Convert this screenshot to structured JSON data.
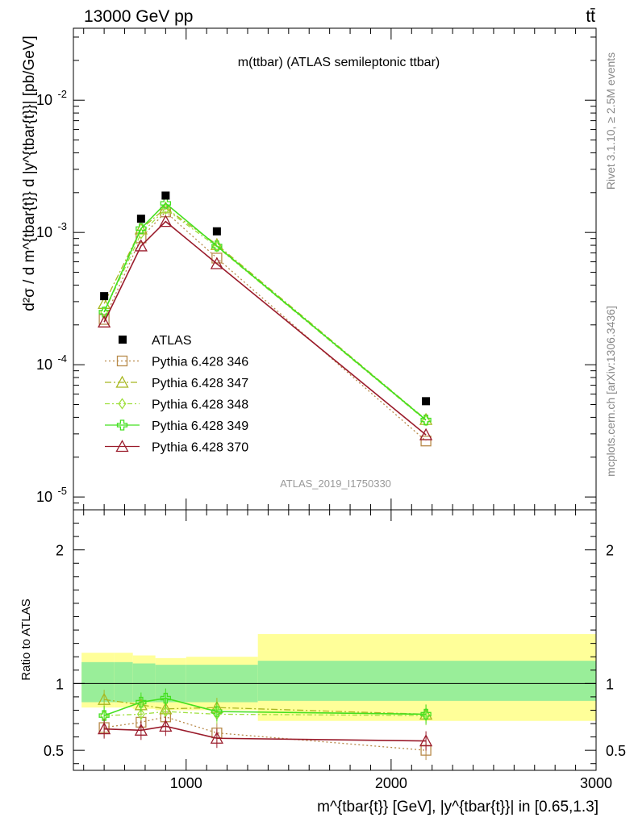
{
  "header": {
    "left": "13000 GeV pp",
    "right": "tt̄"
  },
  "side_labels": {
    "right_top": "Rivet 3.1.10, ≥ 2.5M events",
    "right_bottom": "mcplots.cern.ch [arXiv:1306.3436]"
  },
  "chart_data": {
    "type": "line",
    "title": "m(ttbar) (ATLAS semileptonic ttbar)",
    "watermark": "ATLAS_2019_I1750330",
    "xlabel": "m^{tbar{t}} [GeV], |y^{tbar{t}}| in [0.65,1.3]",
    "ylabel": "d²σ / d m^{tbar{t}} d |y^{tbar{t}}| [pb/GeV]",
    "ratio_ylabel": "Ratio to ATLAS",
    "xlim": [
      450,
      3000
    ],
    "ylim": [
      8e-06,
      0.035
    ],
    "yscale": "log",
    "ratio_ylim": [
      0.35,
      2.3
    ],
    "x_ticks": [
      1000,
      2000,
      3000
    ],
    "y_ticks": [
      {
        "value": 0.01,
        "label": "10",
        "exp": "-2"
      },
      {
        "value": 0.001,
        "label": "10",
        "exp": "-3"
      },
      {
        "value": 0.0001,
        "label": "10",
        "exp": "-4"
      },
      {
        "value": 1e-05,
        "label": "10",
        "exp": "-5"
      }
    ],
    "ratio_ticks": [
      {
        "value": 0.5,
        "label": "0.5"
      },
      {
        "value": 1,
        "label": "1"
      },
      {
        "value": 2,
        "label": "2"
      }
    ],
    "x": [
      600,
      780,
      900,
      1150,
      2170
    ],
    "data": {
      "name": "ATLAS",
      "values": [
        0.00033,
        0.00127,
        0.0019,
        0.00102,
        5.3e-05
      ]
    },
    "bands": [
      {
        "x0": 490,
        "x1": 650,
        "inner": [
          0.86,
          1.16
        ],
        "outer": [
          0.82,
          1.23
        ]
      },
      {
        "x0": 650,
        "x1": 740,
        "inner": [
          0.86,
          1.16
        ],
        "outer": [
          0.82,
          1.23
        ]
      },
      {
        "x0": 740,
        "x1": 850,
        "inner": [
          0.86,
          1.15
        ],
        "outer": [
          0.81,
          1.21
        ]
      },
      {
        "x0": 850,
        "x1": 1000,
        "inner": [
          0.86,
          1.14
        ],
        "outer": [
          0.8,
          1.19
        ]
      },
      {
        "x0": 1000,
        "x1": 1350,
        "inner": [
          0.86,
          1.14
        ],
        "outer": [
          0.8,
          1.2
        ]
      },
      {
        "x0": 1350,
        "x1": 3000,
        "inner": [
          0.87,
          1.17
        ],
        "outer": [
          0.72,
          1.37
        ]
      }
    ],
    "series": [
      {
        "name": "Pythia 6.428 346",
        "color": "#b88a4a",
        "dash": "2,3",
        "marker": "square",
        "values": [
          0.00022,
          0.00091,
          0.00143,
          0.00064,
          2.65e-05
        ],
        "ratio": [
          0.67,
          0.71,
          0.75,
          0.63,
          0.5
        ]
      },
      {
        "name": "Pythia 6.428 347",
        "color": "#a8b820",
        "dash": "8,3,2,3",
        "marker": "triangle",
        "values": [
          0.00029,
          0.00106,
          0.00153,
          0.00081,
          3.85e-05
        ],
        "ratio": [
          0.88,
          0.84,
          0.81,
          0.82,
          0.77
        ]
      },
      {
        "name": "Pythia 6.428 348",
        "color": "#a0e040",
        "dash": "6,3,2,3",
        "marker": "diamond",
        "values": [
          0.00025,
          0.00098,
          0.0015,
          0.00078,
          3.78e-05
        ],
        "ratio": [
          0.76,
          0.77,
          0.79,
          0.77,
          0.76
        ]
      },
      {
        "name": "Pythia 6.428 349",
        "color": "#44e020",
        "dash": "",
        "marker": "cross",
        "values": [
          0.00025,
          0.00107,
          0.00166,
          0.00079,
          3.82e-05
        ],
        "ratio": [
          0.76,
          0.86,
          0.89,
          0.79,
          0.77
        ]
      },
      {
        "name": "Pythia 6.428 370",
        "color": "#9a1b2b",
        "dash": "",
        "marker": "triangle",
        "values": [
          0.00021,
          0.00079,
          0.00121,
          0.00058,
          2.95e-05
        ],
        "ratio": [
          0.66,
          0.65,
          0.68,
          0.59,
          0.57
        ]
      }
    ]
  }
}
